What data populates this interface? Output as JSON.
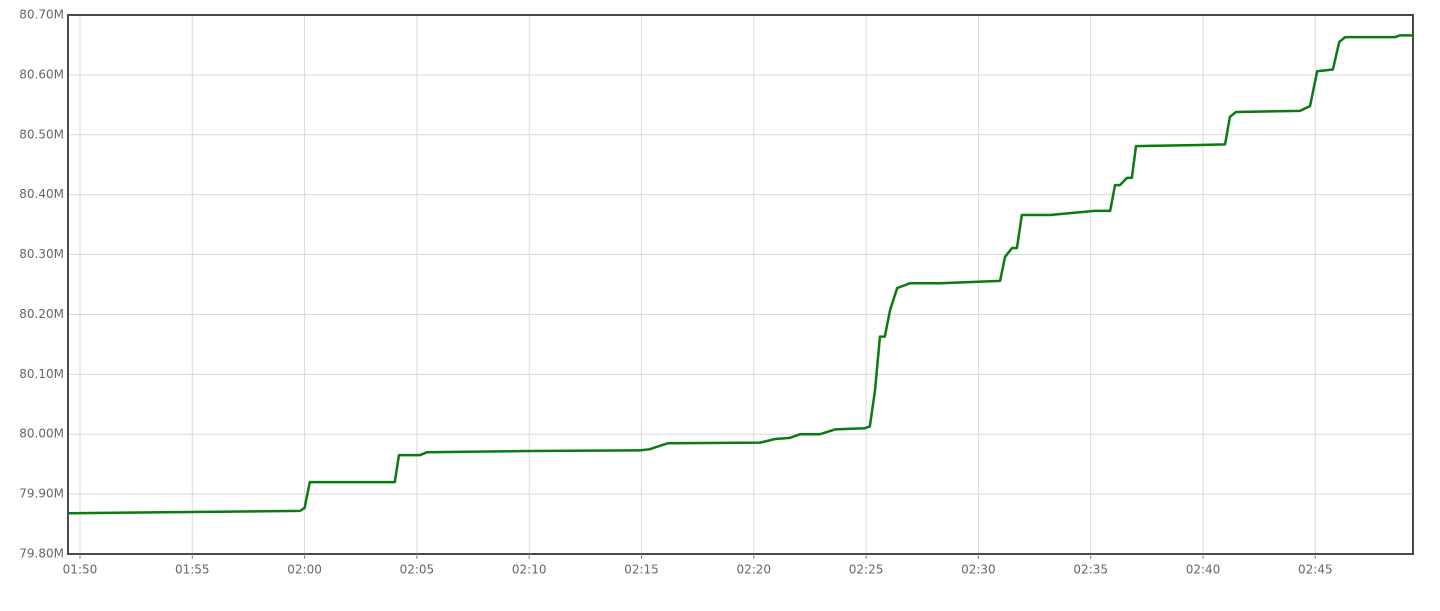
{
  "chart_data": {
    "type": "line",
    "x": [
      "01:49:28",
      "01:59:48",
      "02:00:00",
      "02:00:14",
      "02:04:01",
      "02:04:12",
      "02:05:08",
      "02:05:27",
      "02:10:02",
      "02:14:56",
      "02:15:23",
      "02:15:36",
      "02:16:11",
      "02:20:17",
      "02:20:57",
      "02:21:37",
      "02:22:04",
      "02:22:57",
      "02:23:37",
      "02:24:57",
      "02:25:10",
      "02:25:24",
      "02:25:37",
      "02:25:50",
      "02:26:04",
      "02:26:23",
      "02:26:57",
      "02:28:17",
      "02:30:58",
      "02:31:11",
      "02:31:30",
      "02:31:43",
      "02:31:56",
      "02:33:11",
      "02:35:11",
      "02:35:52",
      "02:36:05",
      "02:36:18",
      "02:36:37",
      "02:36:50",
      "02:37:01",
      "02:39:52",
      "02:40:59",
      "02:41:12",
      "02:41:28",
      "02:44:19",
      "02:44:46",
      "02:45:05",
      "02:45:47",
      "02:46:04",
      "02:46:20",
      "02:48:33",
      "02:48:46",
      "02:49:21"
    ],
    "series": [
      {
        "color": "#0b7a10",
        "values": [
          79.868,
          79.872,
          79.877,
          79.92,
          79.92,
          79.965,
          79.965,
          79.97,
          79.972,
          79.973,
          79.975,
          79.978,
          79.985,
          79.986,
          79.992,
          79.994,
          80.0,
          80.0,
          80.008,
          80.01,
          80.013,
          80.074,
          80.163,
          80.163,
          80.207,
          80.244,
          80.252,
          80.252,
          80.256,
          80.296,
          80.311,
          80.311,
          80.366,
          80.366,
          80.373,
          80.373,
          80.416,
          80.416,
          80.428,
          80.428,
          80.481,
          80.483,
          80.484,
          80.53,
          80.538,
          80.54,
          80.548,
          80.606,
          80.609,
          80.655,
          80.663,
          80.663,
          80.666,
          80.666
        ]
      }
    ],
    "xlim": [
      "01:49:28",
      "02:49:21"
    ],
    "xticks": [
      "01:50",
      "01:55",
      "02:00",
      "02:05",
      "02:10",
      "02:15",
      "02:20",
      "02:25",
      "02:30",
      "02:35",
      "02:40",
      "02:45"
    ],
    "ylim": [
      79.8,
      80.7
    ],
    "yticks": [
      {
        "value": 79.8,
        "label": "79.80M"
      },
      {
        "value": 79.9,
        "label": "79.90M"
      },
      {
        "value": 80.0,
        "label": "80.00M"
      },
      {
        "value": 80.1,
        "label": "80.10M"
      },
      {
        "value": 80.2,
        "label": "80.20M"
      },
      {
        "value": 80.3,
        "label": "80.30M"
      },
      {
        "value": 80.4,
        "label": "80.40M"
      },
      {
        "value": 80.5,
        "label": "80.50M"
      },
      {
        "value": 80.6,
        "label": "80.60M"
      },
      {
        "value": 80.7,
        "label": "80.70M"
      }
    ],
    "grid": true
  }
}
